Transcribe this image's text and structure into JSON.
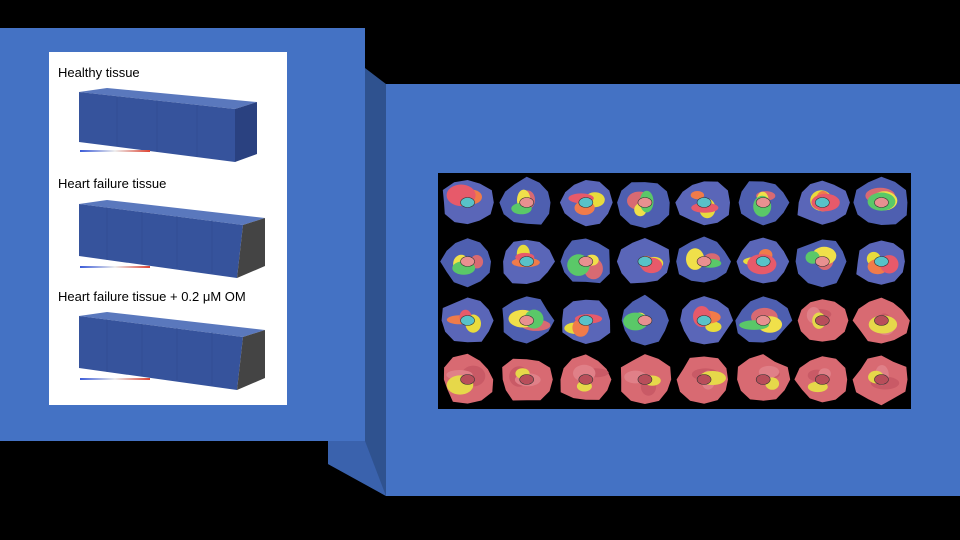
{
  "slide": {
    "colors": {
      "background": "#000000",
      "box": "#4472c4",
      "box_side": "#2f528f",
      "tissue": "#3b5ba8",
      "heart_red": "#d86a72"
    }
  },
  "tissue_panel": {
    "items": [
      {
        "label": "Healthy tissue"
      },
      {
        "label": "Heart failure tissue"
      },
      {
        "label": "Heart failure tissue + 0.2 μM OM"
      }
    ]
  },
  "heart_grid": {
    "rows": 4,
    "cols": 8
  }
}
